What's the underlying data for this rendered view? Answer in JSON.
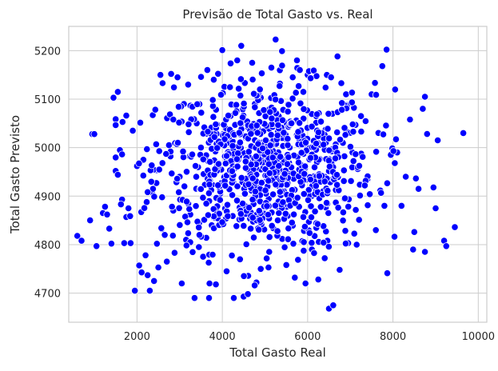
{
  "chart_data": {
    "type": "scatter",
    "title": "Previsão de Total Gasto vs. Real",
    "xlabel": "Total Gasto Real",
    "ylabel": "Total Gasto Previsto",
    "xlim": [
      400,
      10200
    ],
    "ylim": [
      4640,
      5250
    ],
    "xticks": [
      2000,
      4000,
      6000,
      8000,
      10000
    ],
    "yticks": [
      4700,
      4800,
      4900,
      5000,
      5100,
      5200
    ],
    "grid": true,
    "color": "#0000ff",
    "point_count": 1000,
    "x_mean": 5000,
    "x_std": 1500,
    "y_mean": 4960,
    "y_std": 95,
    "points": [
      [
        600,
        4818
      ],
      [
        700,
        4808
      ],
      [
        900,
        4850
      ],
      [
        950,
        5028
      ],
      [
        1000,
        5028
      ],
      [
        1050,
        4797
      ],
      [
        1200,
        4865
      ],
      [
        1250,
        4878
      ],
      [
        1300,
        4862
      ],
      [
        1350,
        4833
      ],
      [
        1400,
        4802
      ],
      [
        1450,
        5103
      ],
      [
        1500,
        4952
      ],
      [
        1550,
        5115
      ],
      [
        1550,
        4944
      ],
      [
        1600,
        4995
      ],
      [
        1650,
        4986
      ],
      [
        1650,
        4893
      ],
      [
        1700,
        4803
      ],
      [
        1750,
        4857
      ],
      [
        1750,
        5066
      ],
      [
        1800,
        4875
      ],
      [
        1850,
        4803
      ],
      [
        1900,
        5035
      ],
      [
        1950,
        4705
      ],
      [
        2000,
        4962
      ],
      [
        2050,
        4757
      ],
      [
        2100,
        4867
      ],
      [
        2150,
        4975
      ],
      [
        2200,
        4778
      ],
      [
        2250,
        4737
      ],
      [
        2300,
        4705
      ],
      [
        2350,
        4908
      ],
      [
        2400,
        4725
      ],
      [
        2450,
        5007
      ],
      [
        2500,
        4753
      ],
      [
        2550,
        5150
      ],
      [
        2600,
        5133
      ],
      [
        2650,
        4820
      ],
      [
        2700,
        4765
      ],
      [
        2750,
        5005
      ],
      [
        2800,
        5152
      ],
      [
        2850,
        4870
      ],
      [
        2950,
        5145
      ],
      [
        3000,
        4940
      ],
      [
        3050,
        4720
      ],
      [
        3100,
        5090
      ],
      [
        3150,
        4810
      ],
      [
        3200,
        5130
      ],
      [
        3250,
        4862
      ],
      [
        3350,
        4690
      ],
      [
        3400,
        5050
      ],
      [
        3450,
        4795
      ],
      [
        3500,
        5000
      ],
      [
        3550,
        4775
      ],
      [
        3650,
        5160
      ],
      [
        3700,
        4720
      ],
      [
        3750,
        4840
      ],
      [
        3800,
        5140
      ],
      [
        3850,
        4718
      ],
      [
        3950,
        4905
      ],
      [
        4000,
        5201
      ],
      [
        4050,
        4983
      ],
      [
        4100,
        4745
      ],
      [
        4200,
        5065
      ],
      [
        4250,
        4930
      ],
      [
        4350,
        5180
      ],
      [
        4400,
        4852
      ],
      [
        4500,
        4693
      ],
      [
        4550,
        5020
      ],
      [
        4600,
        4698
      ],
      [
        4700,
        5175
      ],
      [
        4800,
        4722
      ],
      [
        4850,
        5110
      ],
      [
        4900,
        4750
      ],
      [
        5000,
        5003
      ],
      [
        5100,
        4785
      ],
      [
        5150,
        5165
      ],
      [
        5250,
        5223
      ],
      [
        5300,
        4850
      ],
      [
        5350,
        5132
      ],
      [
        5400,
        5199
      ],
      [
        5500,
        4758
      ],
      [
        5550,
        4970
      ],
      [
        5650,
        5145
      ],
      [
        5700,
        4732
      ],
      [
        5750,
        5180
      ],
      [
        5800,
        4878
      ],
      [
        5900,
        5115
      ],
      [
        5950,
        4720
      ],
      [
        6000,
        5150
      ],
      [
        6100,
        4790
      ],
      [
        6200,
        5065
      ],
      [
        6250,
        4728
      ],
      [
        6350,
        4938
      ],
      [
        6400,
        4772
      ],
      [
        6450,
        5150
      ],
      [
        6500,
        4668
      ],
      [
        6550,
        5145
      ],
      [
        6600,
        4675
      ],
      [
        6700,
        5188
      ],
      [
        6750,
        4748
      ],
      [
        6900,
        5110
      ],
      [
        6950,
        4803
      ],
      [
        7050,
        4990
      ],
      [
        7150,
        4800
      ],
      [
        7250,
        5065
      ],
      [
        7400,
        4935
      ],
      [
        7500,
        5110
      ],
      [
        7600,
        4830
      ],
      [
        7750,
        5168
      ],
      [
        7800,
        4880
      ],
      [
        7850,
        5202
      ],
      [
        7950,
        4985
      ],
      [
        8050,
        5120
      ],
      [
        8100,
        4990
      ],
      [
        8200,
        4880
      ],
      [
        8300,
        4940
      ],
      [
        8400,
        5058
      ],
      [
        8500,
        4826
      ],
      [
        8600,
        4915
      ],
      [
        8700,
        5080
      ],
      [
        8750,
        4785
      ],
      [
        8750,
        5105
      ],
      [
        8950,
        4918
      ],
      [
        9000,
        4875
      ],
      [
        9050,
        5015
      ],
      [
        9200,
        4808
      ],
      [
        9250,
        4797
      ],
      [
        9450,
        4836
      ],
      [
        9650,
        5030
      ]
    ]
  }
}
